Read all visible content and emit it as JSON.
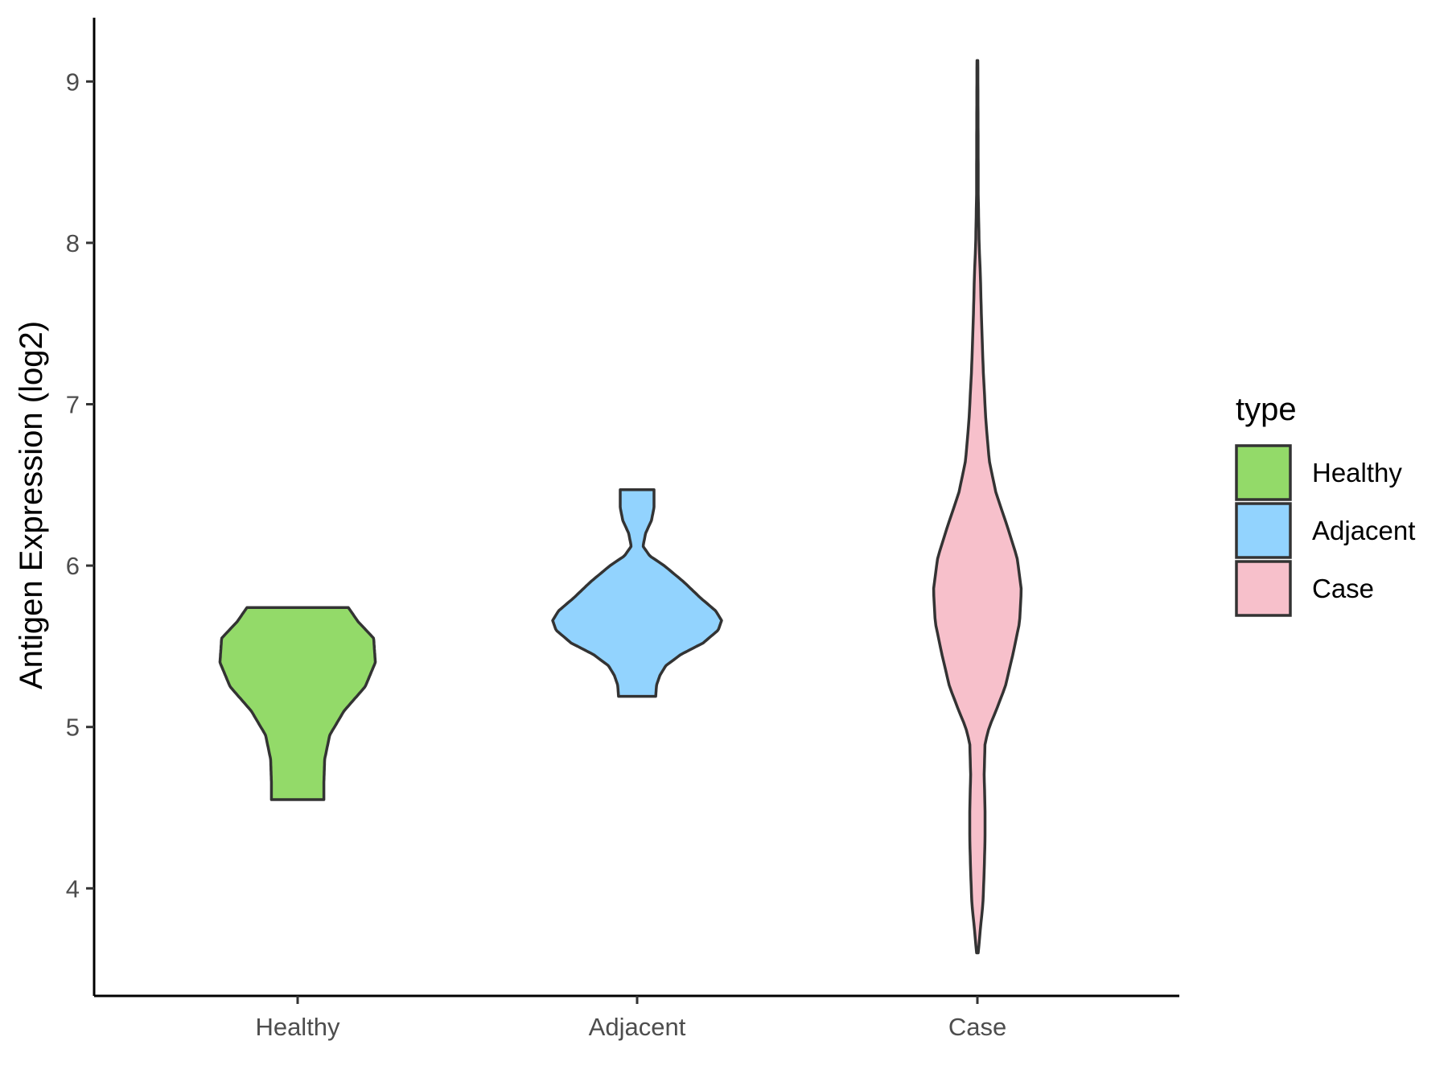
{
  "chart_data": {
    "type": "violin",
    "ylabel": "Antigen Expression (log2)",
    "xlabel": "",
    "ylim": [
      3.3,
      9.4
    ],
    "yticks": [
      4,
      5,
      6,
      7,
      8,
      9
    ],
    "categories": [
      "Healthy",
      "Adjacent",
      "Case"
    ],
    "grid": false,
    "legend": {
      "title": "type",
      "placement": "right",
      "entries": [
        "Healthy",
        "Adjacent",
        "Case"
      ]
    },
    "series": [
      {
        "name": "Healthy",
        "color": "#93da69",
        "min": 4.55,
        "max": 5.74,
        "density_profile": [
          [
            4.55,
            0.31
          ],
          [
            4.65,
            0.31
          ],
          [
            4.8,
            0.32
          ],
          [
            4.95,
            0.38
          ],
          [
            5.1,
            0.55
          ],
          [
            5.25,
            0.8
          ],
          [
            5.4,
            0.92
          ],
          [
            5.55,
            0.9
          ],
          [
            5.65,
            0.72
          ],
          [
            5.74,
            0.6
          ]
        ]
      },
      {
        "name": "Adjacent",
        "color": "#92d3fe",
        "min": 5.19,
        "max": 6.47,
        "density_profile": [
          [
            5.19,
            0.22
          ],
          [
            5.26,
            0.23
          ],
          [
            5.32,
            0.27
          ],
          [
            5.38,
            0.34
          ],
          [
            5.45,
            0.52
          ],
          [
            5.52,
            0.78
          ],
          [
            5.6,
            0.96
          ],
          [
            5.66,
            1.0
          ],
          [
            5.72,
            0.93
          ],
          [
            5.8,
            0.75
          ],
          [
            5.9,
            0.55
          ],
          [
            6.0,
            0.32
          ],
          [
            6.06,
            0.15
          ],
          [
            6.12,
            0.07
          ],
          [
            6.2,
            0.1
          ],
          [
            6.28,
            0.17
          ],
          [
            6.36,
            0.2
          ],
          [
            6.42,
            0.2
          ],
          [
            6.47,
            0.2
          ]
        ]
      },
      {
        "name": "Case",
        "color": "#f7c0cb",
        "min": 3.6,
        "max": 9.13,
        "density_profile": [
          [
            3.6,
            0.01
          ],
          [
            3.75,
            0.035
          ],
          [
            3.9,
            0.065
          ],
          [
            4.1,
            0.08
          ],
          [
            4.3,
            0.09
          ],
          [
            4.5,
            0.09
          ],
          [
            4.7,
            0.08
          ],
          [
            4.9,
            0.09
          ],
          [
            5.0,
            0.14
          ],
          [
            5.1,
            0.22
          ],
          [
            5.25,
            0.33
          ],
          [
            5.45,
            0.42
          ],
          [
            5.65,
            0.5
          ],
          [
            5.85,
            0.52
          ],
          [
            6.05,
            0.47
          ],
          [
            6.25,
            0.35
          ],
          [
            6.45,
            0.22
          ],
          [
            6.65,
            0.14
          ],
          [
            6.9,
            0.1
          ],
          [
            7.2,
            0.07
          ],
          [
            7.5,
            0.05
          ],
          [
            7.8,
            0.035
          ],
          [
            8.0,
            0.02
          ],
          [
            8.3,
            0.01
          ],
          [
            8.7,
            0.008
          ],
          [
            9.13,
            0.005
          ]
        ]
      }
    ]
  }
}
